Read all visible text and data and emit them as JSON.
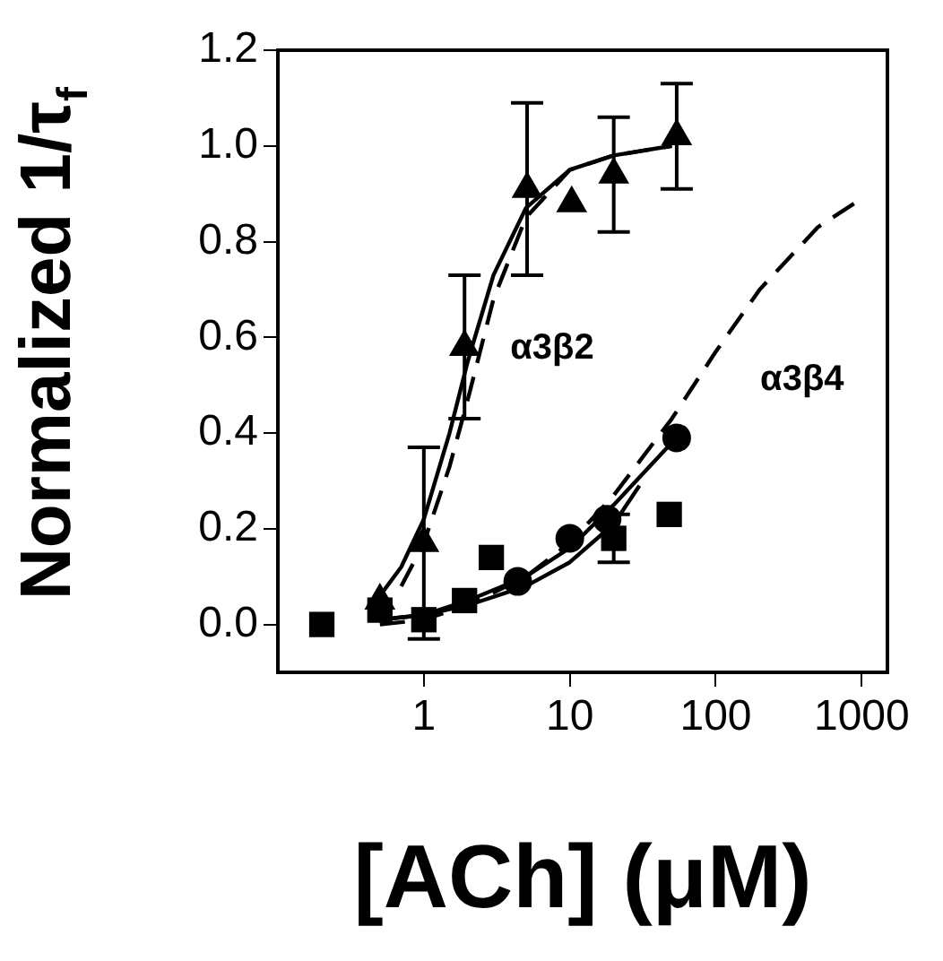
{
  "chart_data": {
    "type": "scatter",
    "xlabel": "[ACh] (μM)",
    "ylabel": "Normalized 1/τ$_{f}$",
    "log": "x",
    "xlim": [
      0.1,
      1500
    ],
    "xticks": [
      1,
      10,
      100,
      1000
    ],
    "ylim": [
      -0.1,
      1.2
    ],
    "yticks": [
      {
        "value": 0,
        "label": "0.0"
      },
      0.2,
      0.4,
      0.6,
      0.8,
      {
        "value": 1,
        "label": "1.0"
      },
      1.2
    ],
    "grid": false,
    "legend": false,
    "annotations": [
      "α3β2",
      "α3β4"
    ],
    "series": [
      {
        "type": "line",
        "marker": "none",
        "line_style": "solid",
        "color": "#000000",
        "x": [
          0.5,
          0.7,
          1,
          1.5,
          2,
          3,
          5,
          10,
          20,
          50
        ],
        "values": [
          0.06,
          0.12,
          0.22,
          0.4,
          0.55,
          0.73,
          0.87,
          0.95,
          0.98,
          1.0
        ]
      },
      {
        "type": "line",
        "marker": "none",
        "line_style": "dashed",
        "color": "#000000",
        "x": [
          0.7,
          1,
          1.5,
          2,
          3,
          5,
          10,
          20,
          50
        ],
        "values": [
          0.08,
          0.17,
          0.33,
          0.47,
          0.68,
          0.85,
          0.95,
          0.98,
          1.0
        ]
      },
      {
        "type": "line",
        "marker": "none",
        "line_style": "dashed",
        "color": "#000000",
        "x": [
          0.5,
          1,
          2,
          5,
          10,
          20,
          50,
          100,
          200,
          500,
          1000
        ],
        "values": [
          0.0,
          0.01,
          0.04,
          0.1,
          0.17,
          0.27,
          0.43,
          0.57,
          0.7,
          0.83,
          0.89
        ]
      },
      {
        "type": "line",
        "marker": "none",
        "line_style": "solid",
        "color": "#000000",
        "x": [
          0.5,
          1,
          2,
          5,
          10,
          20,
          50
        ],
        "values": [
          0.01,
          0.02,
          0.05,
          0.1,
          0.16,
          0.25,
          0.38
        ]
      },
      {
        "type": "line",
        "marker": "none",
        "line_style": "solid",
        "color": "#000000",
        "x": [
          0.5,
          1,
          2,
          5,
          10,
          20,
          30
        ],
        "values": [
          0.01,
          0.02,
          0.04,
          0.08,
          0.13,
          0.21,
          0.29
        ]
      },
      {
        "marker": "triangle",
        "color": "#000000",
        "x": [
          0.5,
          1,
          1.9,
          5.1,
          10.3,
          20,
          54
        ],
        "values": [
          0.05,
          0.17,
          0.58,
          0.91,
          0.88,
          0.94,
          1.02
        ],
        "errors": [
          null,
          0.2,
          0.15,
          0.18,
          null,
          0.12,
          0.11
        ]
      },
      {
        "marker": "circle",
        "color": "#000000",
        "x": [
          4.4,
          10,
          18,
          54
        ],
        "values": [
          0.09,
          0.18,
          0.22,
          0.39
        ]
      },
      {
        "marker": "square",
        "color": "#000000",
        "x": [
          0.2,
          0.5,
          1,
          1.9,
          2.9,
          20,
          48
        ],
        "values": [
          0.0,
          0.03,
          0.01,
          0.05,
          0.14,
          0.18,
          0.23
        ],
        "errors": [
          null,
          null,
          null,
          null,
          null,
          0.05,
          null
        ]
      }
    ]
  }
}
